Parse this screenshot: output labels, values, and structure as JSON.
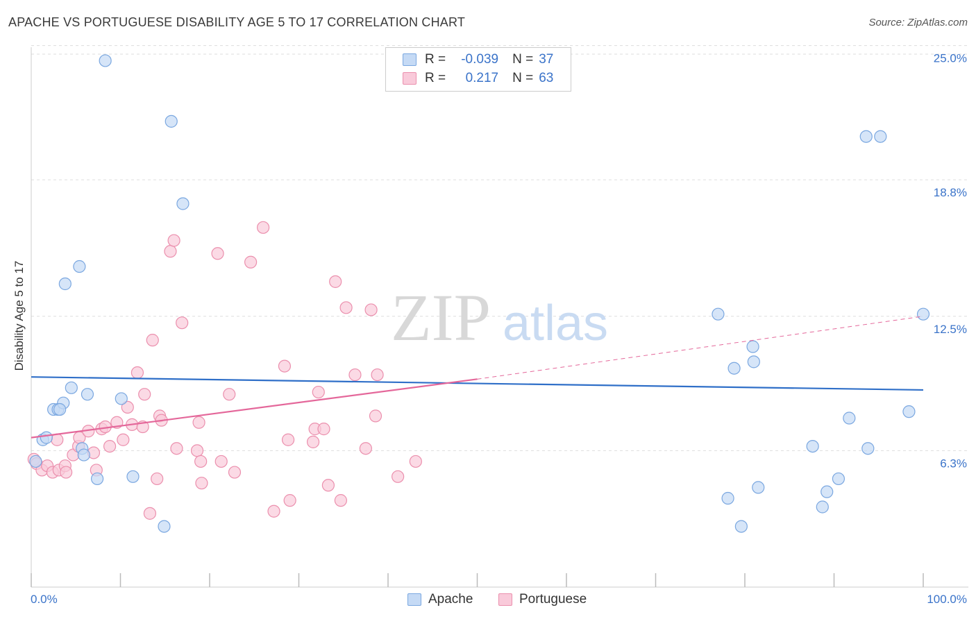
{
  "title": "APACHE VS PORTUGUESE DISABILITY AGE 5 TO 17 CORRELATION CHART",
  "source": "Source: ZipAtlas.com",
  "watermark": {
    "zip": "ZIP",
    "atlas": "atlas"
  },
  "legend": {
    "r_label": "R =",
    "n_label": "N =",
    "apache": {
      "r": "-0.039",
      "n": "37"
    },
    "portuguese": {
      "r": "0.217",
      "n": "63"
    }
  },
  "colors": {
    "apache_fill": "#c5daf5",
    "apache_stroke": "#7aa7e0",
    "apache_line": "#2f6fc8",
    "portuguese_fill": "#f9cada",
    "portuguese_stroke": "#eb8fad",
    "portuguese_line": "#e4679a",
    "grid": "#dddddd",
    "axis_text": "#3a73c9"
  },
  "chart_data": {
    "type": "scatter",
    "title": "APACHE VS PORTUGUESE DISABILITY AGE 5 TO 17 CORRELATION CHART",
    "xlabel": "",
    "ylabel": "Disability Age 5 to 17",
    "xlim": [
      0,
      100
    ],
    "ylim": [
      0,
      25.5
    ],
    "x_tick_labels": [
      "0.0%",
      "100.0%"
    ],
    "y_ticks": [
      6.3,
      12.5,
      18.8,
      25.0
    ],
    "y_tick_labels": [
      "6.3%",
      "12.5%",
      "18.8%",
      "25.0%"
    ],
    "grid": true,
    "legend_position": "top-center",
    "series": [
      {
        "name": "Apache",
        "r": -0.039,
        "n": 37,
        "trend": {
          "x": [
            0,
            100
          ],
          "y": [
            9.7,
            9.1
          ]
        },
        "points": [
          [
            8.3,
            24.3
          ],
          [
            15.7,
            21.5
          ],
          [
            17.0,
            17.7
          ],
          [
            5.4,
            14.8
          ],
          [
            3.8,
            14.0
          ],
          [
            1.3,
            6.8
          ],
          [
            1.7,
            6.9
          ],
          [
            2.5,
            8.2
          ],
          [
            3.0,
            8.2
          ],
          [
            3.6,
            8.5
          ],
          [
            3.2,
            8.2
          ],
          [
            4.5,
            9.2
          ],
          [
            6.3,
            8.9
          ],
          [
            10.1,
            8.7
          ],
          [
            7.4,
            5.0
          ],
          [
            5.7,
            6.4
          ],
          [
            5.9,
            6.1
          ],
          [
            11.4,
            5.1
          ],
          [
            14.9,
            2.8
          ],
          [
            81.0,
            10.4
          ],
          [
            77.0,
            12.6
          ],
          [
            78.8,
            10.1
          ],
          [
            80.9,
            11.1
          ],
          [
            93.6,
            20.8
          ],
          [
            95.2,
            20.8
          ],
          [
            100.0,
            12.6
          ],
          [
            98.4,
            8.1
          ],
          [
            91.7,
            7.8
          ],
          [
            93.8,
            6.4
          ],
          [
            87.6,
            6.5
          ],
          [
            90.5,
            5.0
          ],
          [
            89.2,
            4.4
          ],
          [
            88.7,
            3.7
          ],
          [
            78.1,
            4.1
          ],
          [
            81.5,
            4.6
          ],
          [
            79.6,
            2.8
          ],
          [
            0.5,
            5.8
          ]
        ]
      },
      {
        "name": "Portuguese",
        "r": 0.217,
        "n": 63,
        "trend": {
          "x": [
            0,
            50
          ],
          "y": [
            6.9,
            9.6
          ]
        },
        "trend_extended": {
          "x": [
            50,
            100
          ],
          "y": [
            9.6,
            12.5
          ]
        },
        "points": [
          [
            0.3,
            5.9
          ],
          [
            0.6,
            5.7
          ],
          [
            1.2,
            5.4
          ],
          [
            1.8,
            5.6
          ],
          [
            2.4,
            5.3
          ],
          [
            3.1,
            5.4
          ],
          [
            2.9,
            6.8
          ],
          [
            3.8,
            5.6
          ],
          [
            3.9,
            5.3
          ],
          [
            4.7,
            6.1
          ],
          [
            5.3,
            6.5
          ],
          [
            5.4,
            6.9
          ],
          [
            6.4,
            7.2
          ],
          [
            7.0,
            6.2
          ],
          [
            7.3,
            5.4
          ],
          [
            7.9,
            7.3
          ],
          [
            8.3,
            7.4
          ],
          [
            8.8,
            6.5
          ],
          [
            9.6,
            7.6
          ],
          [
            10.3,
            6.8
          ],
          [
            10.8,
            8.3
          ],
          [
            11.3,
            7.5
          ],
          [
            11.9,
            9.9
          ],
          [
            12.5,
            7.4
          ],
          [
            12.7,
            8.9
          ],
          [
            13.3,
            3.4
          ],
          [
            13.6,
            11.4
          ],
          [
            14.1,
            5.0
          ],
          [
            14.4,
            7.9
          ],
          [
            14.6,
            7.7
          ],
          [
            15.6,
            15.5
          ],
          [
            16.0,
            16.0
          ],
          [
            16.3,
            6.4
          ],
          [
            16.9,
            12.2
          ],
          [
            18.8,
            7.6
          ],
          [
            18.6,
            6.3
          ],
          [
            19.0,
            5.8
          ],
          [
            19.1,
            4.8
          ],
          [
            20.9,
            15.4
          ],
          [
            21.3,
            5.8
          ],
          [
            22.2,
            8.9
          ],
          [
            22.8,
            5.3
          ],
          [
            24.6,
            15.0
          ],
          [
            26.0,
            16.6
          ],
          [
            27.2,
            3.5
          ],
          [
            28.4,
            10.2
          ],
          [
            29.0,
            4.0
          ],
          [
            28.8,
            6.8
          ],
          [
            31.6,
            6.7
          ],
          [
            31.8,
            7.3
          ],
          [
            32.2,
            9.0
          ],
          [
            32.8,
            7.3
          ],
          [
            33.3,
            4.7
          ],
          [
            34.1,
            14.1
          ],
          [
            34.7,
            4.0
          ],
          [
            35.3,
            12.9
          ],
          [
            36.3,
            9.8
          ],
          [
            37.5,
            6.4
          ],
          [
            38.1,
            12.8
          ],
          [
            38.6,
            7.9
          ],
          [
            38.8,
            9.8
          ],
          [
            41.1,
            5.1
          ],
          [
            43.1,
            5.8
          ]
        ]
      }
    ]
  }
}
